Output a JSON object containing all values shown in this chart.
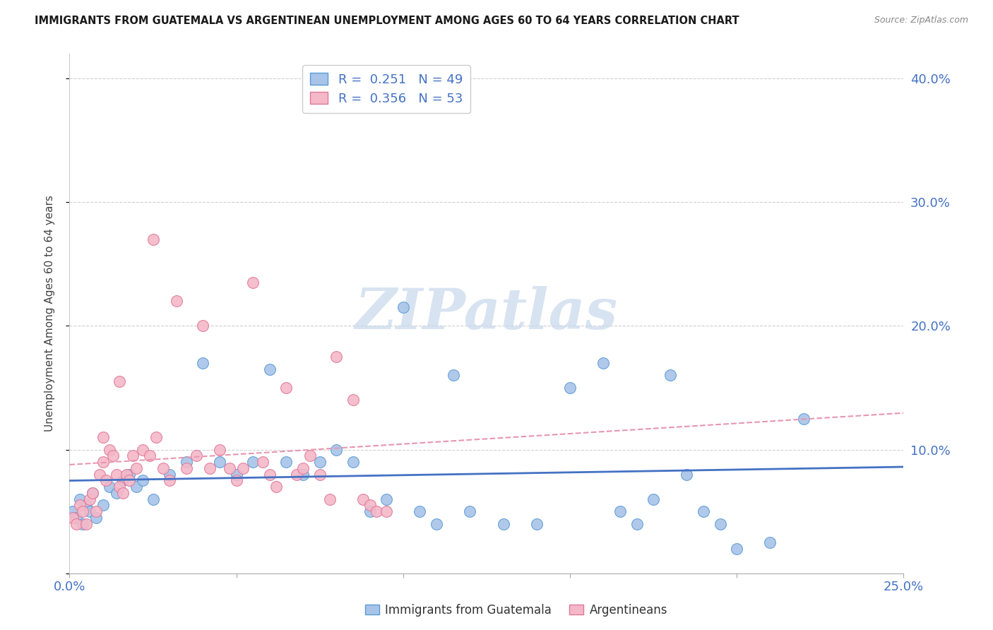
{
  "title": "IMMIGRANTS FROM GUATEMALA VS ARGENTINEAN UNEMPLOYMENT AMONG AGES 60 TO 64 YEARS CORRELATION CHART",
  "source": "Source: ZipAtlas.com",
  "ylabel": "Unemployment Among Ages 60 to 64 years",
  "xlim": [
    0.0,
    0.25
  ],
  "ylim": [
    0.0,
    0.42
  ],
  "xticks": [
    0.0,
    0.05,
    0.1,
    0.15,
    0.2,
    0.25
  ],
  "yticks": [
    0.0,
    0.1,
    0.2,
    0.3,
    0.4
  ],
  "blue_R": "0.251",
  "blue_N": "49",
  "pink_R": "0.356",
  "pink_N": "53",
  "blue_scatter_color": "#a8c4e8",
  "blue_edge_color": "#5b9bd5",
  "pink_scatter_color": "#f4b8c8",
  "pink_edge_color": "#e07898",
  "blue_line_color": "#4472c4",
  "pink_line_color": "#e896b0",
  "axis_color": "#4472c4",
  "grid_color": "#d0d0d0",
  "legend_label_blue": "Immigrants from Guatemala",
  "legend_label_pink": "Argentineans",
  "watermark": "ZIPatlas",
  "watermark_color": "#c8d8ec",
  "blue_scatter_x": [
    0.001,
    0.002,
    0.003,
    0.004,
    0.005,
    0.006,
    0.007,
    0.008,
    0.01,
    0.012,
    0.014,
    0.016,
    0.018,
    0.02,
    0.022,
    0.025,
    0.03,
    0.035,
    0.04,
    0.045,
    0.05,
    0.055,
    0.06,
    0.065,
    0.07,
    0.075,
    0.08,
    0.085,
    0.09,
    0.095,
    0.1,
    0.105,
    0.11,
    0.115,
    0.12,
    0.13,
    0.14,
    0.15,
    0.16,
    0.165,
    0.17,
    0.175,
    0.18,
    0.185,
    0.19,
    0.195,
    0.2,
    0.21,
    0.22
  ],
  "blue_scatter_y": [
    0.05,
    0.045,
    0.06,
    0.04,
    0.055,
    0.05,
    0.065,
    0.045,
    0.055,
    0.07,
    0.065,
    0.075,
    0.08,
    0.07,
    0.075,
    0.06,
    0.08,
    0.09,
    0.17,
    0.09,
    0.08,
    0.09,
    0.165,
    0.09,
    0.08,
    0.09,
    0.1,
    0.09,
    0.05,
    0.06,
    0.215,
    0.05,
    0.04,
    0.16,
    0.05,
    0.04,
    0.04,
    0.15,
    0.17,
    0.05,
    0.04,
    0.06,
    0.16,
    0.08,
    0.05,
    0.04,
    0.02,
    0.025,
    0.125
  ],
  "pink_scatter_x": [
    0.001,
    0.002,
    0.003,
    0.004,
    0.005,
    0.006,
    0.007,
    0.008,
    0.009,
    0.01,
    0.011,
    0.012,
    0.013,
    0.014,
    0.015,
    0.016,
    0.017,
    0.018,
    0.019,
    0.02,
    0.022,
    0.024,
    0.026,
    0.028,
    0.03,
    0.032,
    0.035,
    0.038,
    0.04,
    0.042,
    0.045,
    0.048,
    0.05,
    0.052,
    0.055,
    0.058,
    0.06,
    0.062,
    0.065,
    0.068,
    0.07,
    0.072,
    0.075,
    0.078,
    0.08,
    0.085,
    0.088,
    0.09,
    0.092,
    0.095,
    0.01,
    0.015,
    0.025
  ],
  "pink_scatter_y": [
    0.045,
    0.04,
    0.055,
    0.05,
    0.04,
    0.06,
    0.065,
    0.05,
    0.08,
    0.09,
    0.075,
    0.1,
    0.095,
    0.08,
    0.07,
    0.065,
    0.08,
    0.075,
    0.095,
    0.085,
    0.1,
    0.095,
    0.11,
    0.085,
    0.075,
    0.22,
    0.085,
    0.095,
    0.2,
    0.085,
    0.1,
    0.085,
    0.075,
    0.085,
    0.235,
    0.09,
    0.08,
    0.07,
    0.15,
    0.08,
    0.085,
    0.095,
    0.08,
    0.06,
    0.175,
    0.14,
    0.06,
    0.055,
    0.05,
    0.05,
    0.11,
    0.155,
    0.27
  ]
}
